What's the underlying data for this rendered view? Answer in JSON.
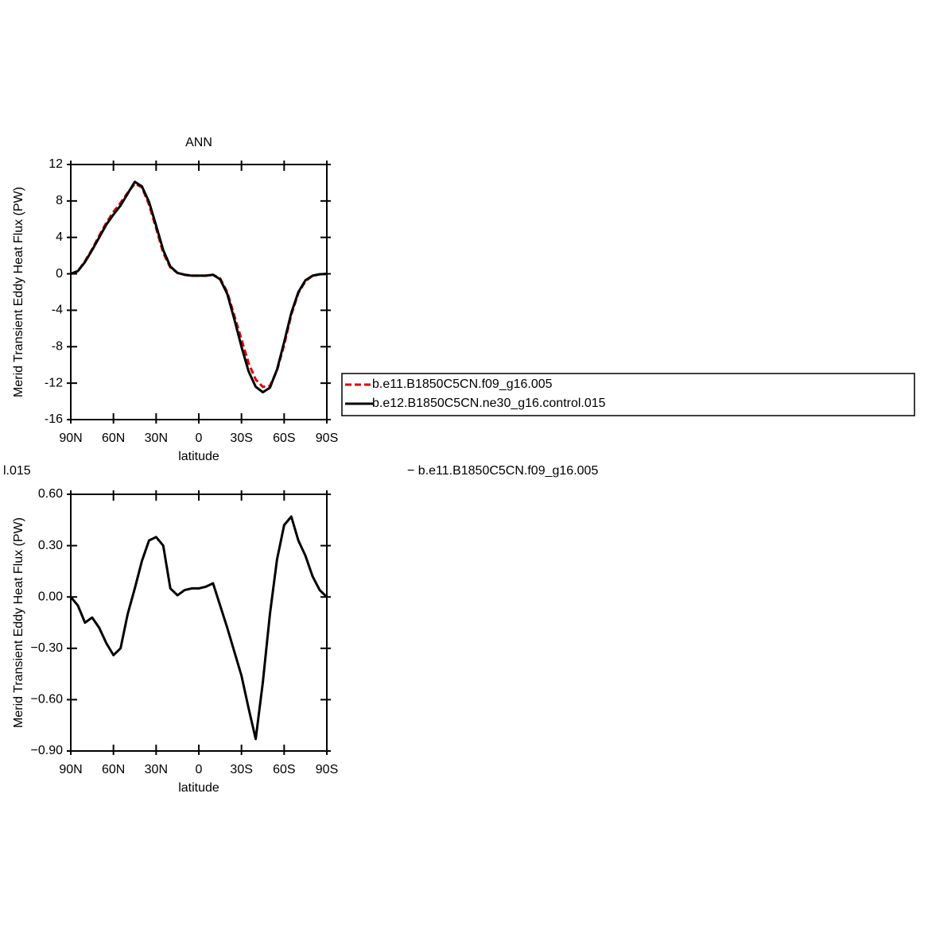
{
  "chart_data": [
    {
      "type": "line",
      "title": "ANN",
      "xlabel": "latitude",
      "ylabel": "Merid Transient Eddy Heat Flux (PW)",
      "x": [
        90,
        85,
        80,
        75,
        70,
        65,
        60,
        55,
        50,
        45,
        40,
        35,
        30,
        25,
        20,
        15,
        10,
        5,
        0,
        -5,
        -10,
        -15,
        -20,
        -25,
        -30,
        -35,
        -40,
        -45,
        -50,
        -55,
        -60,
        -65,
        -70,
        -75,
        -80,
        -85,
        -90
      ],
      "series": [
        {
          "name": "b.e11.B1850C5CN.f09_g16.005",
          "color": "#e00000",
          "dashed": true,
          "values": [
            0,
            0.3,
            1.4,
            2.7,
            4.2,
            5.6,
            6.8,
            7.8,
            8.9,
            9.9,
            9.5,
            7.6,
            5.0,
            2.3,
            0.7,
            0.1,
            -0.1,
            -0.2,
            -0.2,
            -0.2,
            -0.1,
            -0.5,
            -2.0,
            -4.6,
            -7.2,
            -9.8,
            -11.6,
            -12.4,
            -12.3,
            -10.6,
            -7.8,
            -4.5,
            -2.1,
            -0.8,
            -0.2,
            -0.05,
            0
          ]
        },
        {
          "name": "b.e12.B1850C5CN.ne30_g16.control.015",
          "color": "#000000",
          "dashed": false,
          "values": [
            0,
            0.3,
            1.3,
            2.6,
            4.0,
            5.4,
            6.5,
            7.5,
            8.8,
            10.1,
            9.6,
            7.9,
            5.3,
            2.6,
            0.8,
            0.1,
            -0.1,
            -0.2,
            -0.2,
            -0.2,
            -0.1,
            -0.6,
            -2.2,
            -5.0,
            -8.0,
            -10.7,
            -12.4,
            -13.0,
            -12.5,
            -10.5,
            -7.5,
            -4.3,
            -2.0,
            -0.7,
            -0.2,
            -0.05,
            0
          ]
        }
      ],
      "xlim": [
        90,
        -90
      ],
      "xticks": [
        {
          "value": 90,
          "label": "90N"
        },
        {
          "value": 60,
          "label": "60N"
        },
        {
          "value": 30,
          "label": "30N"
        },
        0,
        {
          "value": -30,
          "label": "30S"
        },
        {
          "value": -60,
          "label": "60S"
        },
        {
          "value": -90,
          "label": "90S"
        }
      ],
      "ylim": [
        -16,
        12
      ],
      "yticks": [
        -16,
        -12,
        -8,
        -4,
        0,
        4,
        8,
        12
      ],
      "legend": "right"
    },
    {
      "type": "line",
      "title_left": "l.015",
      "title_right": "− b.e11.B1850C5CN.f09_g16.005",
      "xlabel": "latitude",
      "ylabel": "Merid Transient Eddy Heat Flux (PW)",
      "x": [
        90,
        85,
        80,
        75,
        70,
        65,
        60,
        55,
        50,
        45,
        40,
        35,
        30,
        25,
        20,
        15,
        10,
        5,
        0,
        -5,
        -10,
        -15,
        -20,
        -25,
        -30,
        -35,
        -40,
        -45,
        -50,
        -55,
        -60,
        -65,
        -70,
        -75,
        -80,
        -85,
        -90
      ],
      "series": [
        {
          "color": "#000000",
          "dashed": false,
          "values": [
            0,
            -0.05,
            -0.15,
            -0.12,
            -0.18,
            -0.27,
            -0.34,
            -0.3,
            -0.1,
            0.05,
            0.21,
            0.33,
            0.35,
            0.3,
            0.05,
            0.01,
            0.04,
            0.05,
            0.05,
            0.06,
            0.08,
            -0.05,
            -0.18,
            -0.32,
            -0.46,
            -0.65,
            -0.83,
            -0.5,
            -0.1,
            0.22,
            0.42,
            0.47,
            0.33,
            0.24,
            0.12,
            0.04,
            0
          ]
        }
      ],
      "xlim": [
        90,
        -90
      ],
      "xticks": [
        {
          "value": 90,
          "label": "90N"
        },
        {
          "value": 60,
          "label": "60N"
        },
        {
          "value": 30,
          "label": "30N"
        },
        0,
        {
          "value": -30,
          "label": "30S"
        },
        {
          "value": -60,
          "label": "60S"
        },
        {
          "value": -90,
          "label": "90S"
        }
      ],
      "ylim": [
        -0.9,
        0.6
      ],
      "yticks": [
        {
          "value": -0.9,
          "label": "−0.90"
        },
        {
          "value": -0.6,
          "label": "−0.60"
        },
        {
          "value": -0.3,
          "label": "−0.30"
        },
        {
          "value": 0,
          "label": "0.00"
        },
        {
          "value": 0.3,
          "label": "0.30"
        },
        {
          "value": 0.6,
          "label": "0.60"
        }
      ]
    }
  ]
}
